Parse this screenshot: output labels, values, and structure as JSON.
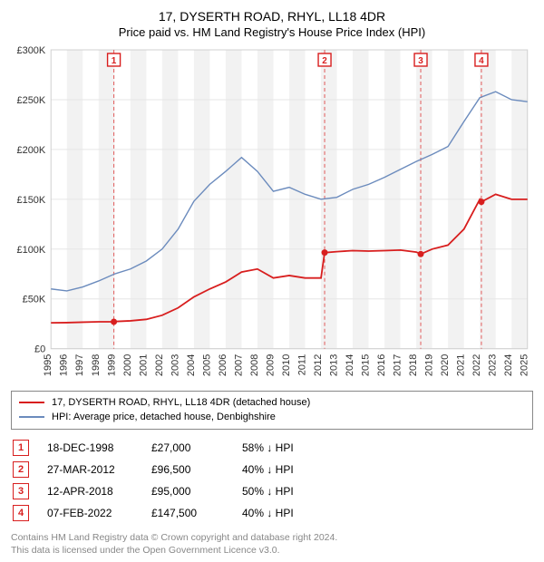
{
  "title_main": "17, DYSERTH ROAD, RHYL, LL18 4DR",
  "title_sub": "Price paid vs. HM Land Registry's House Price Index (HPI)",
  "chart": {
    "type": "line",
    "background_color": "#ffffff",
    "plot_border_color": "#d0d0d0",
    "grid_color": "#e6e6e6",
    "axis_label_color": "#333333",
    "axis_font_size": 11,
    "ylim": [
      0,
      300000
    ],
    "ytick_step": 50000,
    "ytick_labels": [
      "£0",
      "£50K",
      "£100K",
      "£150K",
      "£200K",
      "£250K",
      "£300K"
    ],
    "x_years": [
      1995,
      1996,
      1997,
      1998,
      1999,
      2000,
      2001,
      2002,
      2003,
      2004,
      2005,
      2006,
      2007,
      2008,
      2009,
      2010,
      2011,
      2012,
      2013,
      2014,
      2015,
      2016,
      2017,
      2018,
      2019,
      2020,
      2021,
      2022,
      2023,
      2024,
      2025
    ],
    "vbands_color": "#f2f2f2",
    "vbands": [
      [
        1996,
        1997
      ],
      [
        1998,
        1999
      ],
      [
        2000,
        2001
      ],
      [
        2002,
        2003
      ],
      [
        2004,
        2005
      ],
      [
        2006,
        2007
      ],
      [
        2008,
        2009
      ],
      [
        2010,
        2011
      ],
      [
        2012,
        2013
      ],
      [
        2014,
        2015
      ],
      [
        2016,
        2017
      ],
      [
        2018,
        2019
      ],
      [
        2020,
        2021
      ],
      [
        2022,
        2023
      ],
      [
        2024,
        2025
      ]
    ],
    "marker_line_color": "#e05a5a",
    "marker_line_dash": "4,3",
    "series": {
      "hpi": {
        "label": "HPI: Average price, detached house, Denbighshire",
        "color": "#6b8bbd",
        "width": 1.4,
        "data": [
          [
            1995,
            60000
          ],
          [
            1996,
            58000
          ],
          [
            1997,
            62000
          ],
          [
            1998,
            68000
          ],
          [
            1999,
            75000
          ],
          [
            2000,
            80000
          ],
          [
            2001,
            88000
          ],
          [
            2002,
            100000
          ],
          [
            2003,
            120000
          ],
          [
            2004,
            148000
          ],
          [
            2005,
            165000
          ],
          [
            2006,
            178000
          ],
          [
            2007,
            192000
          ],
          [
            2008,
            178000
          ],
          [
            2009,
            158000
          ],
          [
            2010,
            162000
          ],
          [
            2011,
            155000
          ],
          [
            2012,
            150000
          ],
          [
            2013,
            152000
          ],
          [
            2014,
            160000
          ],
          [
            2015,
            165000
          ],
          [
            2016,
            172000
          ],
          [
            2017,
            180000
          ],
          [
            2018,
            188000
          ],
          [
            2019,
            195000
          ],
          [
            2020,
            203000
          ],
          [
            2021,
            228000
          ],
          [
            2022,
            252000
          ],
          [
            2023,
            258000
          ],
          [
            2024,
            250000
          ],
          [
            2025,
            248000
          ]
        ]
      },
      "price_paid": {
        "label": "17, DYSERTH ROAD, RHYL, LL18 4DR (detached house)",
        "color": "#d81e1e",
        "width": 1.8,
        "marker_dot_radius": 3.5,
        "data": [
          [
            1995,
            26000
          ],
          [
            1996,
            26200
          ],
          [
            1997,
            26600
          ],
          [
            1998,
            27000
          ],
          [
            1998.96,
            27000
          ],
          [
            1999,
            27300
          ],
          [
            2000,
            28000
          ],
          [
            2001,
            29500
          ],
          [
            2002,
            33500
          ],
          [
            2003,
            41000
          ],
          [
            2004,
            52000
          ],
          [
            2005,
            60000
          ],
          [
            2006,
            67000
          ],
          [
            2007,
            77000
          ],
          [
            2008,
            80000
          ],
          [
            2009,
            71000
          ],
          [
            2010,
            73500
          ],
          [
            2011,
            71000
          ],
          [
            2012,
            71000
          ],
          [
            2012.23,
            96500
          ],
          [
            2013,
            97500
          ],
          [
            2014,
            98500
          ],
          [
            2015,
            98000
          ],
          [
            2016,
            98500
          ],
          [
            2017,
            99000
          ],
          [
            2018,
            97000
          ],
          [
            2018.28,
            95000
          ],
          [
            2019,
            100000
          ],
          [
            2020,
            104000
          ],
          [
            2021,
            120000
          ],
          [
            2022,
            150000
          ],
          [
            2022.1,
            147500
          ],
          [
            2023,
            155000
          ],
          [
            2024,
            150000
          ],
          [
            2025,
            150000
          ]
        ]
      }
    },
    "event_markers": [
      {
        "n": "1",
        "x": 1998.96,
        "y": 27000
      },
      {
        "n": "2",
        "x": 2012.23,
        "y": 96500
      },
      {
        "n": "3",
        "x": 2018.28,
        "y": 95000
      },
      {
        "n": "4",
        "x": 2022.1,
        "y": 147500
      }
    ]
  },
  "legend": [
    {
      "color": "#d81e1e",
      "label": "17, DYSERTH ROAD, RHYL, LL18 4DR (detached house)"
    },
    {
      "color": "#6b8bbd",
      "label": "HPI: Average price, detached house, Denbighshire"
    }
  ],
  "markers_table": [
    {
      "n": "1",
      "date": "18-DEC-1998",
      "price": "£27,000",
      "pct": "58% ↓ HPI"
    },
    {
      "n": "2",
      "date": "27-MAR-2012",
      "price": "£96,500",
      "pct": "40% ↓ HPI"
    },
    {
      "n": "3",
      "date": "12-APR-2018",
      "price": "£95,000",
      "pct": "50% ↓ HPI"
    },
    {
      "n": "4",
      "date": "07-FEB-2022",
      "price": "£147,500",
      "pct": "40% ↓ HPI"
    }
  ],
  "marker_badge_color": "#d81e1e",
  "footer_line1": "Contains HM Land Registry data © Crown copyright and database right 2024.",
  "footer_line2": "This data is licensed under the Open Government Licence v3.0."
}
